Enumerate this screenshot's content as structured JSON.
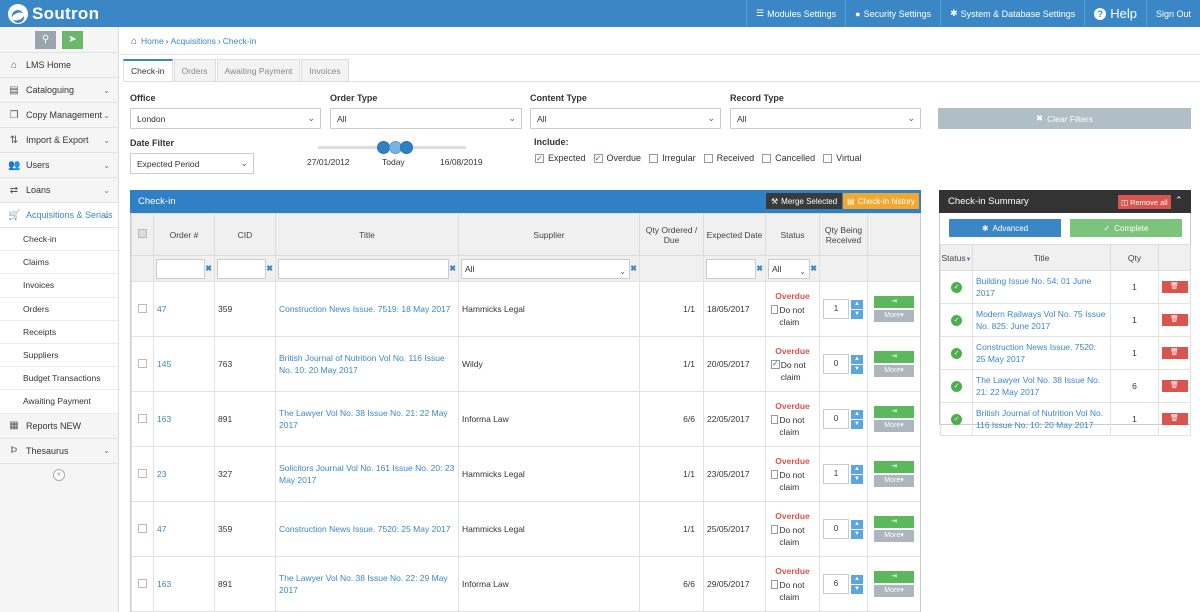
{
  "brand": {
    "name": "Soutron"
  },
  "topnav": [
    {
      "label": "Modules Settings",
      "icon": "sliders-icon",
      "glyph": "☰"
    },
    {
      "label": "Security Settings",
      "icon": "lock-icon",
      "glyph": "🔒"
    },
    {
      "label": "System & Database Settings",
      "icon": "gear-icon",
      "glyph": "✱"
    },
    {
      "label": "Help",
      "icon": "help-icon",
      "glyph": "?"
    },
    {
      "label": "Sign Out",
      "icon": "",
      "glyph": ""
    }
  ],
  "sidebar": {
    "tools": {
      "search_glyph": "🔍",
      "announce_glyph": "📢"
    },
    "items": [
      {
        "label": "LMS Home",
        "glyph": "⌂",
        "chevron": ""
      },
      {
        "label": "Cataloguing",
        "glyph": "▤",
        "chevron": "⌄"
      },
      {
        "label": "Copy Management",
        "glyph": "❐",
        "chevron": "⌄"
      },
      {
        "label": "Import & Export",
        "glyph": "⇅",
        "chevron": "⌄"
      },
      {
        "label": "Users",
        "glyph": "👥",
        "chevron": "⌄"
      },
      {
        "label": "Loans",
        "glyph": "⇄",
        "chevron": "⌄"
      },
      {
        "label": "Acquisitions & Serials",
        "glyph": "🛒",
        "chevron": "⌄"
      }
    ],
    "subitems": [
      "Check-in",
      "Claims",
      "Invoices",
      "Orders",
      "Receipts",
      "Suppliers",
      "Budget Transactions",
      "Awaiting Payment"
    ],
    "items_after": [
      {
        "label": "Reports NEW",
        "glyph": "▦",
        "chevron": ""
      },
      {
        "label": "Thesaurus",
        "glyph": "Þ",
        "chevron": "⌄"
      }
    ],
    "collapse_glyph": "«"
  },
  "breadcrumb": {
    "home": "Home",
    "section": "Acquisitions",
    "page": "Check-in",
    "sep": "›"
  },
  "tabs": [
    "Check-in",
    "Orders",
    "Awaiting Payment",
    "Invoices"
  ],
  "filters": {
    "office": {
      "label": "Office",
      "value": "London"
    },
    "order_type": {
      "label": "Order Type",
      "value": "All"
    },
    "content_type": {
      "label": "Content Type",
      "value": "All"
    },
    "record_type": {
      "label": "Record Type",
      "value": "All"
    },
    "date_filter": {
      "label": "Date Filter",
      "value": "Expected Period"
    },
    "clear": "Clear Filters",
    "slider": {
      "start": "27/01/2012",
      "today": "Today",
      "end": "16/08/2019"
    },
    "include_label": "Include:",
    "include": [
      {
        "label": "Expected",
        "checked": true
      },
      {
        "label": "Overdue",
        "checked": true
      },
      {
        "label": "Irregular",
        "checked": false
      },
      {
        "label": "Received",
        "checked": false
      },
      {
        "label": "Cancelled",
        "checked": false
      },
      {
        "label": "Virtual",
        "checked": false
      }
    ]
  },
  "checkin": {
    "title": "Check-in",
    "merge_btn": "Merge Selected",
    "history_btn": "Check-in history",
    "columns": [
      "Order #",
      "CID",
      "Title",
      "Supplier",
      "Qty Ordered / Due",
      "Expected Date",
      "Status",
      "Qty Being Received"
    ],
    "supplier_filter": "All",
    "status_filter": "All",
    "receive_glyph": "⇥",
    "more_label": "More",
    "no_claim": "Do not claim",
    "rows": [
      {
        "order": "47",
        "cid": "359",
        "title": "Construction News Issue. 7519: 18 May 2017",
        "supplier": "Hammicks Legal",
        "qty": "1/1",
        "date": "18/05/2017",
        "status": "Overdue",
        "no_claim": false,
        "receiving": "1"
      },
      {
        "order": "145",
        "cid": "763",
        "title": "British Journal of Nutrition Vol No. 116 Issue No. 10: 20 May 2017",
        "supplier": "Wildy",
        "qty": "1/1",
        "date": "20/05/2017",
        "status": "Overdue",
        "no_claim": true,
        "receiving": "0"
      },
      {
        "order": "163",
        "cid": "891",
        "title": "The Lawyer Vol No. 38 Issue No. 21: 22 May 2017",
        "supplier": "Informa Law",
        "qty": "6/6",
        "date": "22/05/2017",
        "status": "Overdue",
        "no_claim": false,
        "receiving": "0"
      },
      {
        "order": "23",
        "cid": "327",
        "title": "Solicitors Journal Vol No. 161 Issue No. 20: 23 May 2017",
        "supplier": "Hammicks Legal",
        "qty": "1/1",
        "date": "23/05/2017",
        "status": "Overdue",
        "no_claim": false,
        "receiving": "1"
      },
      {
        "order": "47",
        "cid": "359",
        "title": "Construction News Issue. 7520: 25 May 2017",
        "supplier": "Hammicks Legal",
        "qty": "1/1",
        "date": "25/05/2017",
        "status": "Overdue",
        "no_claim": false,
        "receiving": "0"
      },
      {
        "order": "163",
        "cid": "891",
        "title": "The Lawyer Vol No. 38 Issue No. 22: 29 May 2017",
        "supplier": "Informa Law",
        "qty": "6/6",
        "date": "29/05/2017",
        "status": "Overdue",
        "no_claim": false,
        "receiving": "6"
      }
    ]
  },
  "summary": {
    "title": "Check-in Summary",
    "remove_all": "Remove all",
    "advanced": "Advanced",
    "complete": "Complete",
    "columns": [
      "Status",
      "Title",
      "Qty"
    ],
    "rows": [
      {
        "title": "Building Issue No. 54: 01 June 2017",
        "qty": "1"
      },
      {
        "title": "Modern Railways Vol No. 75 Issue No. 825: June 2017",
        "qty": "1"
      },
      {
        "title": "Construction News Issue. 7520: 25 May 2017",
        "qty": "1"
      },
      {
        "title": "The Lawyer Vol No. 38 Issue No. 21: 22 May 2017",
        "qty": "6"
      },
      {
        "title": "British Journal of Nutrition Vol No. 116 Issue No. 10: 20 May 2017",
        "qty": "1"
      }
    ]
  }
}
